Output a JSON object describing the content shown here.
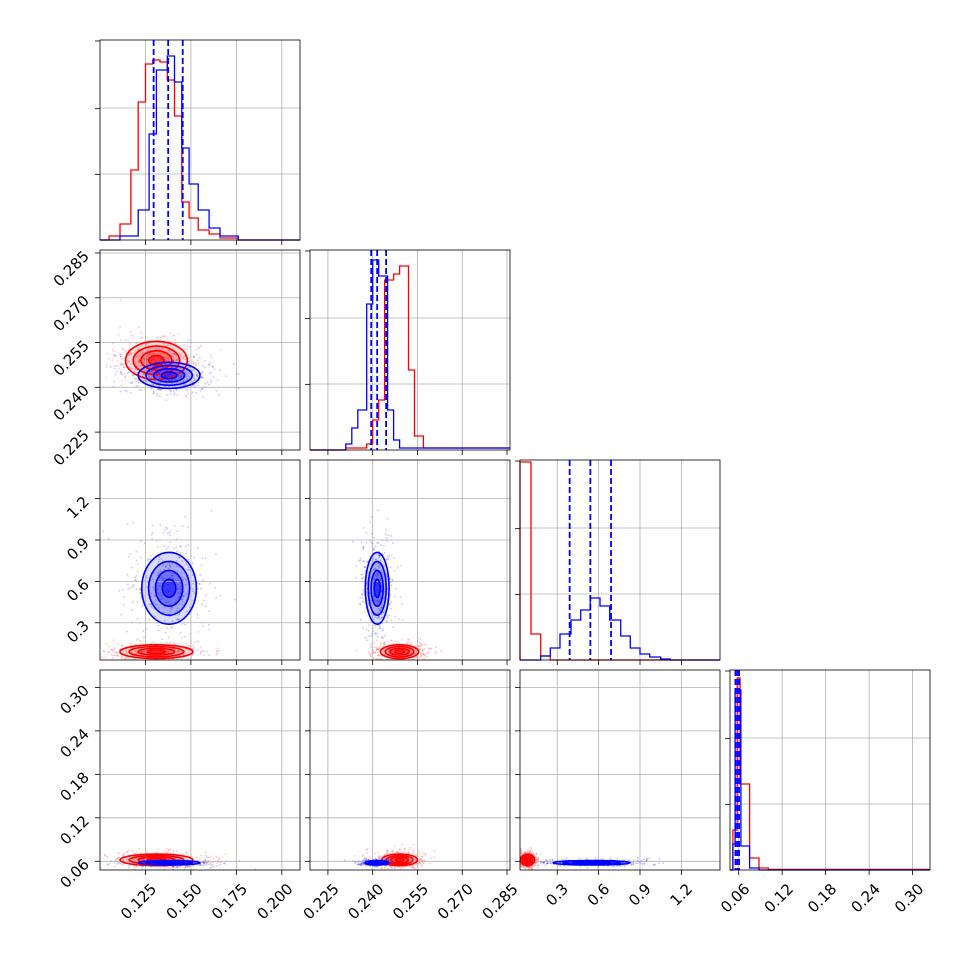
{
  "chart_data": {
    "type": "corner",
    "title": "",
    "colors": {
      "red": "#ff0000",
      "blue": "#0000ff",
      "grid": "#b0b0b0"
    },
    "parameters": [
      {
        "index": 0,
        "range": [
          0.1,
          0.21
        ],
        "ticks": [
          0.125,
          0.15,
          0.175,
          0.2
        ],
        "tick_labels": [
          "0.125",
          "0.150",
          "0.175",
          "0.200"
        ]
      },
      {
        "index": 1,
        "range": [
          0.219,
          0.286
        ],
        "ticks": [
          0.225,
          0.24,
          0.255,
          0.27,
          0.285
        ],
        "tick_labels": [
          "0.225",
          "0.240",
          "0.255",
          "0.270",
          "0.285"
        ]
      },
      {
        "index": 2,
        "range": [
          0.03,
          1.48
        ],
        "ticks": [
          0.3,
          0.6,
          0.9,
          1.2
        ],
        "tick_labels": [
          "0.3",
          "0.6",
          "0.9",
          "1.2"
        ]
      },
      {
        "index": 3,
        "range": [
          0.048,
          0.324
        ],
        "ticks": [
          0.06,
          0.12,
          0.18,
          0.24,
          0.3
        ],
        "tick_labels": [
          "0.06",
          "0.12",
          "0.18",
          "0.24",
          "0.30"
        ]
      }
    ],
    "histograms": [
      {
        "param": 0,
        "quantile_lines": [
          0.1295,
          0.1375,
          0.1455
        ],
        "red_steps": [
          {
            "x": 0.1,
            "y": 0.0
          },
          {
            "x": 0.105,
            "y": 0.02
          },
          {
            "x": 0.111,
            "y": 0.08
          },
          {
            "x": 0.117,
            "y": 0.35
          },
          {
            "x": 0.121,
            "y": 0.69
          },
          {
            "x": 0.125,
            "y": 0.88
          },
          {
            "x": 0.129,
            "y": 0.9
          },
          {
            "x": 0.133,
            "y": 0.89
          },
          {
            "x": 0.137,
            "y": 0.8
          },
          {
            "x": 0.141,
            "y": 0.62
          },
          {
            "x": 0.145,
            "y": 0.19
          },
          {
            "x": 0.149,
            "y": 0.11
          },
          {
            "x": 0.154,
            "y": 0.05
          },
          {
            "x": 0.16,
            "y": 0.03
          },
          {
            "x": 0.166,
            "y": 0.01
          },
          {
            "x": 0.176,
            "y": 0.0
          },
          {
            "x": 0.21,
            "y": 0.0
          }
        ],
        "blue_steps": [
          {
            "x": 0.1,
            "y": 0.0
          },
          {
            "x": 0.111,
            "y": 0.02
          },
          {
            "x": 0.121,
            "y": 0.15
          },
          {
            "x": 0.127,
            "y": 0.53
          },
          {
            "x": 0.131,
            "y": 0.85
          },
          {
            "x": 0.137,
            "y": 0.92
          },
          {
            "x": 0.141,
            "y": 0.79
          },
          {
            "x": 0.145,
            "y": 0.46
          },
          {
            "x": 0.149,
            "y": 0.28
          },
          {
            "x": 0.154,
            "y": 0.15
          },
          {
            "x": 0.16,
            "y": 0.06
          },
          {
            "x": 0.166,
            "y": 0.02
          },
          {
            "x": 0.176,
            "y": 0.0
          },
          {
            "x": 0.21,
            "y": 0.0
          }
        ]
      },
      {
        "param": 1,
        "quantile_lines": [
          0.2395,
          0.2415,
          0.2445
        ],
        "red_steps": [
          {
            "x": 0.219,
            "y": 0.0
          },
          {
            "x": 0.231,
            "y": 0.01
          },
          {
            "x": 0.238,
            "y": 0.03
          },
          {
            "x": 0.24,
            "y": 0.15
          },
          {
            "x": 0.242,
            "y": 0.25
          },
          {
            "x": 0.244,
            "y": 0.85
          },
          {
            "x": 0.247,
            "y": 0.88
          },
          {
            "x": 0.249,
            "y": 0.92
          },
          {
            "x": 0.252,
            "y": 0.4
          },
          {
            "x": 0.254,
            "y": 0.07
          },
          {
            "x": 0.257,
            "y": 0.01
          },
          {
            "x": 0.286,
            "y": 0.0
          }
        ],
        "blue_steps": [
          {
            "x": 0.219,
            "y": 0.0
          },
          {
            "x": 0.231,
            "y": 0.03
          },
          {
            "x": 0.233,
            "y": 0.11
          },
          {
            "x": 0.235,
            "y": 0.2
          },
          {
            "x": 0.238,
            "y": 0.73
          },
          {
            "x": 0.24,
            "y": 0.95
          },
          {
            "x": 0.242,
            "y": 0.87
          },
          {
            "x": 0.245,
            "y": 0.2
          },
          {
            "x": 0.247,
            "y": 0.05
          },
          {
            "x": 0.249,
            "y": 0.01
          },
          {
            "x": 0.286,
            "y": 0.0
          }
        ]
      },
      {
        "param": 2,
        "quantile_lines": [
          0.39,
          0.54,
          0.69
        ],
        "red_steps": [
          {
            "x": 0.03,
            "y": 0.99
          },
          {
            "x": 0.11,
            "y": 0.13
          },
          {
            "x": 0.18,
            "y": 0.02
          },
          {
            "x": 0.25,
            "y": 0.0
          },
          {
            "x": 1.48,
            "y": 0.0
          }
        ],
        "blue_steps": [
          {
            "x": 0.03,
            "y": 0.0
          },
          {
            "x": 0.18,
            "y": 0.02
          },
          {
            "x": 0.25,
            "y": 0.06
          },
          {
            "x": 0.32,
            "y": 0.13
          },
          {
            "x": 0.4,
            "y": 0.2
          },
          {
            "x": 0.47,
            "y": 0.25
          },
          {
            "x": 0.54,
            "y": 0.31
          },
          {
            "x": 0.61,
            "y": 0.27
          },
          {
            "x": 0.68,
            "y": 0.2
          },
          {
            "x": 0.76,
            "y": 0.12
          },
          {
            "x": 0.83,
            "y": 0.06
          },
          {
            "x": 0.9,
            "y": 0.03
          },
          {
            "x": 0.97,
            "y": 0.015
          },
          {
            "x": 1.05,
            "y": 0.005
          },
          {
            "x": 1.12,
            "y": 0.0
          },
          {
            "x": 1.48,
            "y": 0.0
          }
        ]
      },
      {
        "param": 3,
        "quantile_lines": [
          0.0555,
          0.058,
          0.0605
        ],
        "red_steps": [
          {
            "x": 0.048,
            "y": 0.0
          },
          {
            "x": 0.052,
            "y": 0.2
          },
          {
            "x": 0.058,
            "y": 0.96
          },
          {
            "x": 0.062,
            "y": 0.43
          },
          {
            "x": 0.075,
            "y": 0.06
          },
          {
            "x": 0.088,
            "y": 0.01
          },
          {
            "x": 0.101,
            "y": 0.003
          },
          {
            "x": 0.324,
            "y": 0.0
          }
        ],
        "blue_steps": [
          {
            "x": 0.048,
            "y": 0.0
          },
          {
            "x": 0.052,
            "y": 0.13
          },
          {
            "x": 0.055,
            "y": 0.9
          },
          {
            "x": 0.063,
            "y": 0.12
          },
          {
            "x": 0.075,
            "y": 0.01
          },
          {
            "x": 0.088,
            "y": 0.0
          },
          {
            "x": 0.324,
            "y": 0.0
          }
        ]
      }
    ],
    "pairs": [
      {
        "x_param": 0,
        "y_param": 1,
        "red": {
          "mean": [
            0.131,
            0.249
          ],
          "sigma": [
            0.0085,
            0.0032
          ]
        },
        "blue": {
          "mean": [
            0.138,
            0.244
          ],
          "sigma": [
            0.0085,
            0.0022
          ]
        }
      },
      {
        "x_param": 0,
        "y_param": 2,
        "red": {
          "mean": [
            0.131,
            0.09
          ],
          "sigma": [
            0.01,
            0.025
          ]
        },
        "blue": {
          "mean": [
            0.138,
            0.55
          ],
          "sigma": [
            0.0075,
            0.13
          ]
        }
      },
      {
        "x_param": 1,
        "y_param": 2,
        "red": {
          "mean": [
            0.249,
            0.09
          ],
          "sigma": [
            0.0032,
            0.025
          ]
        },
        "blue": {
          "mean": [
            0.2415,
            0.55
          ],
          "sigma": [
            0.002,
            0.13
          ]
        }
      },
      {
        "x_param": 0,
        "y_param": 3,
        "red": {
          "mean": [
            0.131,
            0.062
          ],
          "sigma": [
            0.01,
            0.004
          ]
        },
        "blue": {
          "mean": [
            0.138,
            0.058
          ],
          "sigma": [
            0.0085,
            0.0015
          ]
        }
      },
      {
        "x_param": 1,
        "y_param": 3,
        "red": {
          "mean": [
            0.249,
            0.062
          ],
          "sigma": [
            0.003,
            0.004
          ]
        },
        "blue": {
          "mean": [
            0.2415,
            0.058
          ],
          "sigma": [
            0.002,
            0.0015
          ]
        }
      },
      {
        "x_param": 2,
        "y_param": 3,
        "red": {
          "mean": [
            0.085,
            0.062
          ],
          "sigma": [
            0.025,
            0.004
          ]
        },
        "blue": {
          "mean": [
            0.55,
            0.058
          ],
          "sigma": [
            0.14,
            0.0015
          ]
        }
      }
    ],
    "grid": true,
    "legend": "none"
  }
}
